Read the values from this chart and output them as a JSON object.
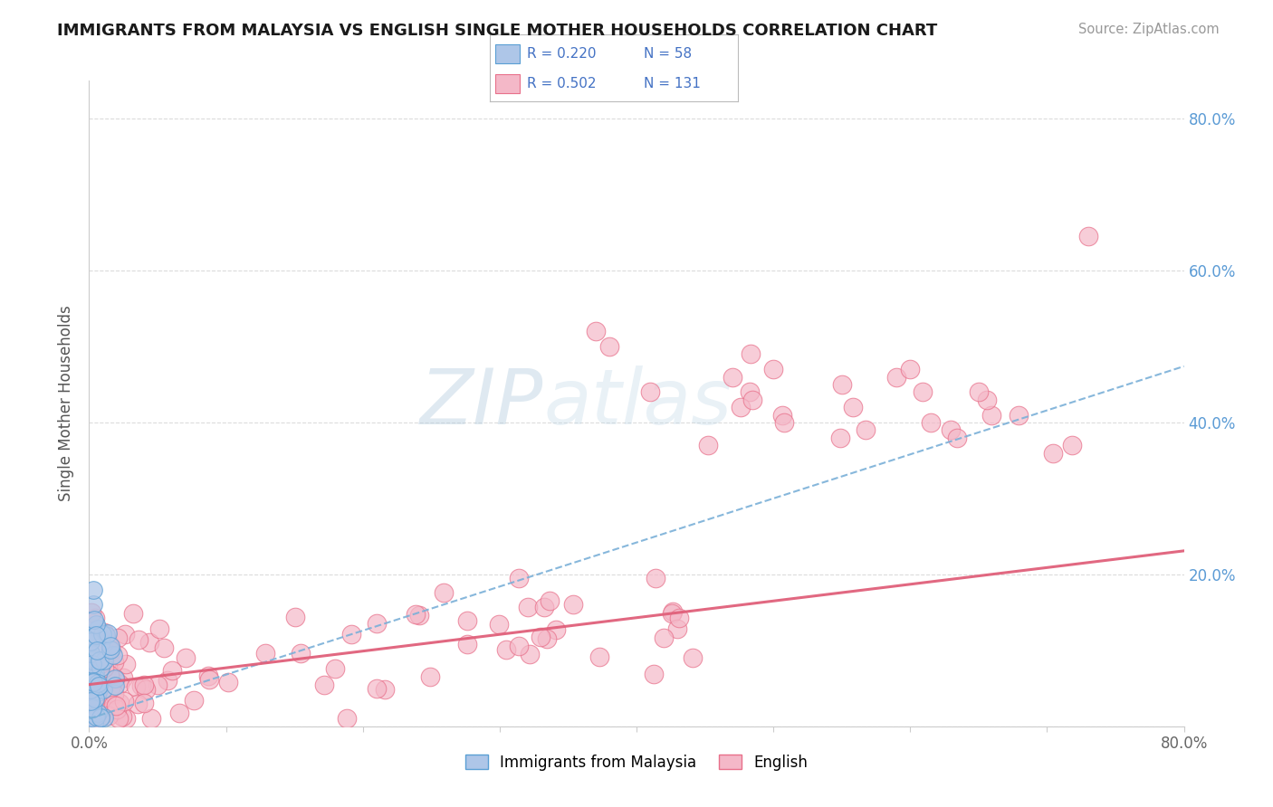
{
  "title": "IMMIGRANTS FROM MALAYSIA VS ENGLISH SINGLE MOTHER HOUSEHOLDS CORRELATION CHART",
  "source": "Source: ZipAtlas.com",
  "ylabel": "Single Mother Households",
  "xlim": [
    0.0,
    0.8
  ],
  "ylim": [
    0.0,
    0.85
  ],
  "legend_r1": "R = 0.220",
  "legend_n1": "N = 58",
  "legend_r2": "R = 0.502",
  "legend_n2": "N = 131",
  "color_malaysia": "#aec6e8",
  "color_malaysia_dark": "#5a9fd4",
  "color_english": "#f4b8c8",
  "color_english_dark": "#e8708a",
  "color_malaysia_line": "#7ab0d8",
  "color_english_line": "#e0607a",
  "background_color": "#ffffff",
  "grid_color": "#d8d8d8",
  "watermark": "ZIPatlas",
  "mal_intercept": 0.01,
  "mal_slope": 0.58,
  "eng_intercept": 0.055,
  "eng_slope": 0.22
}
